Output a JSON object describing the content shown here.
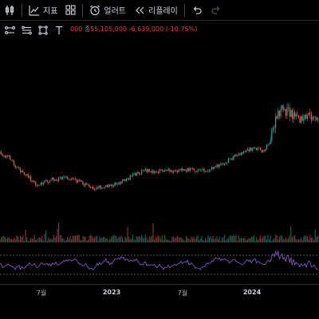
{
  "toolbar": {
    "indicators_label": "지표",
    "alert_label": "얼러트",
    "replay_label": "리플레이"
  },
  "legend": {
    "prefix_tail": "000",
    "close_label": "종",
    "close_value": "55,105,000",
    "change_text": "-6,639,000 (-10.75%)"
  },
  "colors": {
    "up": "#26a69a",
    "down": "#ef5350",
    "rsi_line": "#7e57c2",
    "rsi_band_line": "#787b86"
  },
  "time_axis": {
    "labels": [
      "7월",
      "2023",
      "7월",
      "2024"
    ]
  }
}
